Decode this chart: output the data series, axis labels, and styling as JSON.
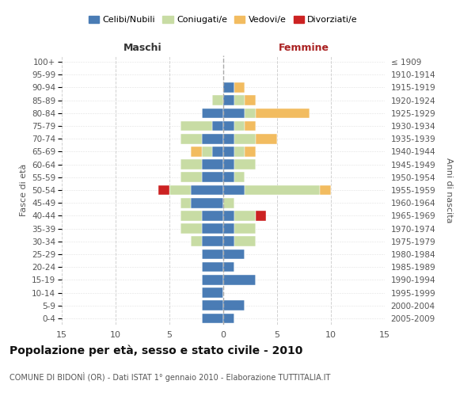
{
  "age_groups": [
    "0-4",
    "5-9",
    "10-14",
    "15-19",
    "20-24",
    "25-29",
    "30-34",
    "35-39",
    "40-44",
    "45-49",
    "50-54",
    "55-59",
    "60-64",
    "65-69",
    "70-74",
    "75-79",
    "80-84",
    "85-89",
    "90-94",
    "95-99",
    "100+"
  ],
  "birth_years": [
    "2005-2009",
    "2000-2004",
    "1995-1999",
    "1990-1994",
    "1985-1989",
    "1980-1984",
    "1975-1979",
    "1970-1974",
    "1965-1969",
    "1960-1964",
    "1955-1959",
    "1950-1954",
    "1945-1949",
    "1940-1944",
    "1935-1939",
    "1930-1934",
    "1925-1929",
    "1920-1924",
    "1915-1919",
    "1910-1914",
    "≤ 1909"
  ],
  "colors": {
    "celibi": "#4a7cb5",
    "coniugati": "#c8dca4",
    "vedovi": "#f2bc60",
    "divorziati": "#cc2222"
  },
  "maschi": {
    "celibi": [
      2,
      2,
      2,
      2,
      2,
      2,
      2,
      2,
      2,
      3,
      3,
      2,
      2,
      1,
      2,
      1,
      2,
      0,
      0,
      0,
      0
    ],
    "coniugati": [
      0,
      0,
      0,
      0,
      0,
      0,
      1,
      2,
      2,
      1,
      2,
      2,
      2,
      1,
      2,
      3,
      0,
      1,
      0,
      0,
      0
    ],
    "vedovi": [
      0,
      0,
      0,
      0,
      0,
      0,
      0,
      0,
      0,
      0,
      0,
      0,
      0,
      1,
      0,
      0,
      0,
      0,
      0,
      0,
      0
    ],
    "divorziati": [
      0,
      0,
      0,
      0,
      0,
      0,
      0,
      0,
      0,
      0,
      1,
      0,
      0,
      0,
      0,
      0,
      0,
      0,
      0,
      0,
      0
    ]
  },
  "femmine": {
    "celibi": [
      1,
      2,
      0,
      3,
      1,
      2,
      1,
      1,
      1,
      0,
      2,
      1,
      1,
      1,
      1,
      1,
      2,
      1,
      1,
      0,
      0
    ],
    "coniugati": [
      0,
      0,
      0,
      0,
      0,
      0,
      2,
      2,
      2,
      1,
      7,
      1,
      2,
      1,
      2,
      1,
      1,
      1,
      0,
      0,
      0
    ],
    "vedovi": [
      0,
      0,
      0,
      0,
      0,
      0,
      0,
      0,
      0,
      0,
      1,
      0,
      0,
      1,
      2,
      1,
      5,
      1,
      1,
      0,
      0
    ],
    "divorziati": [
      0,
      0,
      0,
      0,
      0,
      0,
      0,
      0,
      1,
      0,
      0,
      0,
      0,
      0,
      0,
      0,
      0,
      0,
      0,
      0,
      0
    ]
  },
  "xlim": 15,
  "title": "Popolazione per età, sesso e stato civile - 2010",
  "subtitle": "COMUNE DI BIDONÌ (OR) - Dati ISTAT 1° gennaio 2010 - Elaborazione TUTTITALIA.IT",
  "ylabel_left": "Fasce di età",
  "ylabel_right": "Anni di nascita",
  "xlabel_left": "Maschi",
  "xlabel_right": "Femmine",
  "background_color": "#ffffff",
  "grid_color": "#cccccc"
}
